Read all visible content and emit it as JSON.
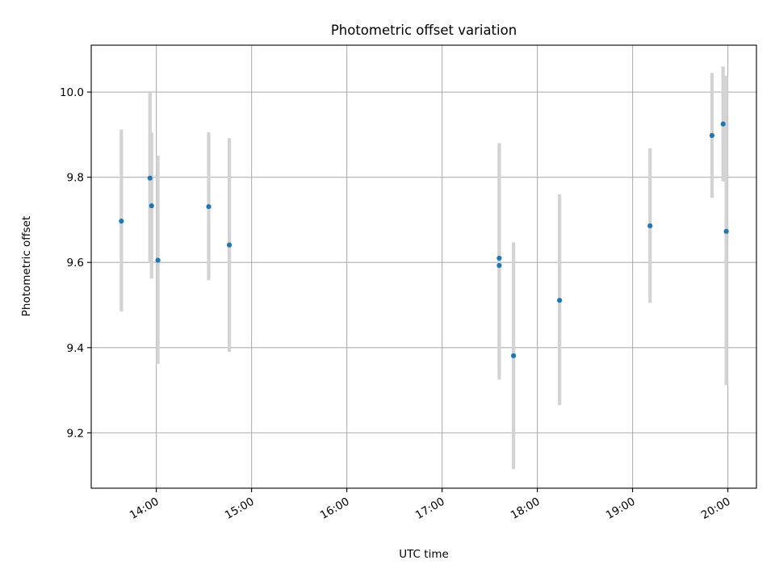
{
  "chart_data": {
    "type": "scatter",
    "title": "Photometric offset variation",
    "xlabel": "UTC time",
    "ylabel": "Photometric offset",
    "x_axis_type": "time",
    "xlim": [
      "13:19",
      "20:18"
    ],
    "ylim": [
      9.07,
      10.11
    ],
    "grid": true,
    "x_ticks": [
      "14:00",
      "15:00",
      "16:00",
      "17:00",
      "18:00",
      "19:00",
      "20:00"
    ],
    "x_tick_label_rotation": 30,
    "y_ticks": [
      9.2,
      9.4,
      9.6,
      9.8,
      10.0
    ],
    "y_tick_labels": [
      "9.2",
      "9.4",
      "9.6",
      "9.8",
      "10.0"
    ],
    "marker_color": "#1f77b4",
    "errorbar_color": "#d3d3d3",
    "series": [
      {
        "points": [
          {
            "x": "13:38",
            "y": 9.697,
            "y_low": 9.485,
            "y_high": 9.912
          },
          {
            "x": "13:56",
            "y": 9.798,
            "y_low": 9.6,
            "y_high": 10.0
          },
          {
            "x": "13:57",
            "y": 9.733,
            "y_low": 9.562,
            "y_high": 9.905
          },
          {
            "x": "14:01",
            "y": 9.605,
            "y_low": 9.362,
            "y_high": 9.851
          },
          {
            "x": "14:33",
            "y": 9.731,
            "y_low": 9.558,
            "y_high": 9.906
          },
          {
            "x": "14:46",
            "y": 9.641,
            "y_low": 9.39,
            "y_high": 9.892
          },
          {
            "x": "17:36",
            "y": 9.61,
            "y_low": 9.355,
            "y_high": 9.88
          },
          {
            "x": "17:36",
            "y": 9.593,
            "y_low": 9.325,
            "y_high": 9.862
          },
          {
            "x": "17:45",
            "y": 9.381,
            "y_low": 9.115,
            "y_high": 9.647
          },
          {
            "x": "18:14",
            "y": 9.511,
            "y_low": 9.265,
            "y_high": 9.76
          },
          {
            "x": "19:11",
            "y": 9.686,
            "y_low": 9.505,
            "y_high": 9.868
          },
          {
            "x": "19:50",
            "y": 9.898,
            "y_low": 9.752,
            "y_high": 10.045
          },
          {
            "x": "19:57",
            "y": 9.925,
            "y_low": 9.79,
            "y_high": 10.06
          },
          {
            "x": "19:59",
            "y": 9.673,
            "y_low": 9.312,
            "y_high": 10.038
          }
        ]
      }
    ]
  }
}
